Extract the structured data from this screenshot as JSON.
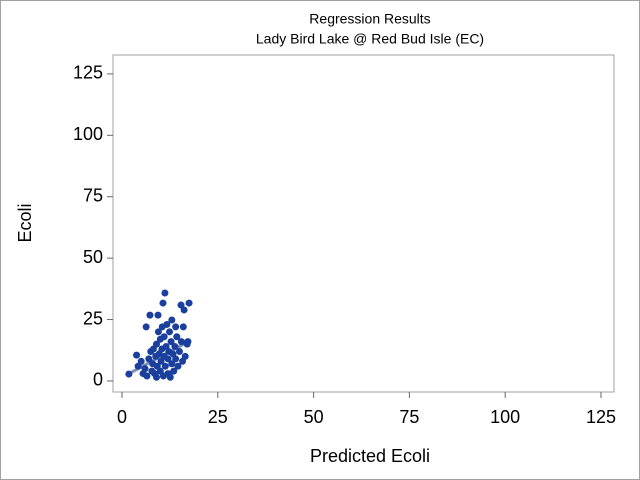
{
  "chart_data": {
    "type": "scatter",
    "title": "Regression Results",
    "subtitle": "Lady Bird Lake @ Red Bud Isle (EC)",
    "x_label": "Predicted Ecoli",
    "y_label": "Ecoli",
    "xlim": [
      -2.35,
      128.4
    ],
    "ylim": [
      -4.5,
      132.7
    ],
    "xticks": [
      0,
      25,
      50,
      75,
      100,
      125
    ],
    "yticks": [
      0,
      25,
      50,
      75,
      100,
      125
    ],
    "color": "#1a3f9c",
    "x": [
      1.8,
      3.8,
      4.2,
      5,
      5.5,
      6,
      6.3,
      6.5,
      7,
      7.3,
      7.5,
      7.8,
      8,
      8.2,
      8.5,
      8.8,
      9,
      9,
      9.2,
      9.4,
      9.5,
      9.7,
      10,
      10,
      10.2,
      10.4,
      10.5,
      10.7,
      10.8,
      11,
      11,
      11.2,
      11.3,
      11.5,
      11.7,
      12,
      12,
      12.2,
      12.4,
      12.6,
      12.8,
      13,
      13,
      13.3,
      13.5,
      13.8,
      14,
      14,
      14.3,
      14.6,
      15,
      15.4,
      15.5,
      15.8,
      16,
      16.2,
      16.5,
      17,
      17.5,
      17.2
    ],
    "values": [
      2.8,
      10.5,
      6,
      8,
      3,
      5,
      22,
      2,
      9,
      26.8,
      12,
      4,
      7,
      13,
      3,
      10,
      1.5,
      15,
      6,
      26.8,
      20,
      11,
      4,
      17,
      8,
      13,
      22,
      31.7,
      2,
      10,
      18,
      35.8,
      6,
      14,
      23,
      3,
      9,
      12,
      20,
      1.5,
      16,
      24.8,
      7,
      11,
      4,
      14,
      22,
      9,
      18,
      6,
      12,
      30.9,
      16,
      8,
      22,
      28.9,
      10,
      15,
      31.7,
      16
    ],
    "fit_line": {
      "x": [
        1.6,
        17.2
      ],
      "values": [
        2.8,
        15.9
      ],
      "color": "#7a92b8"
    }
  }
}
